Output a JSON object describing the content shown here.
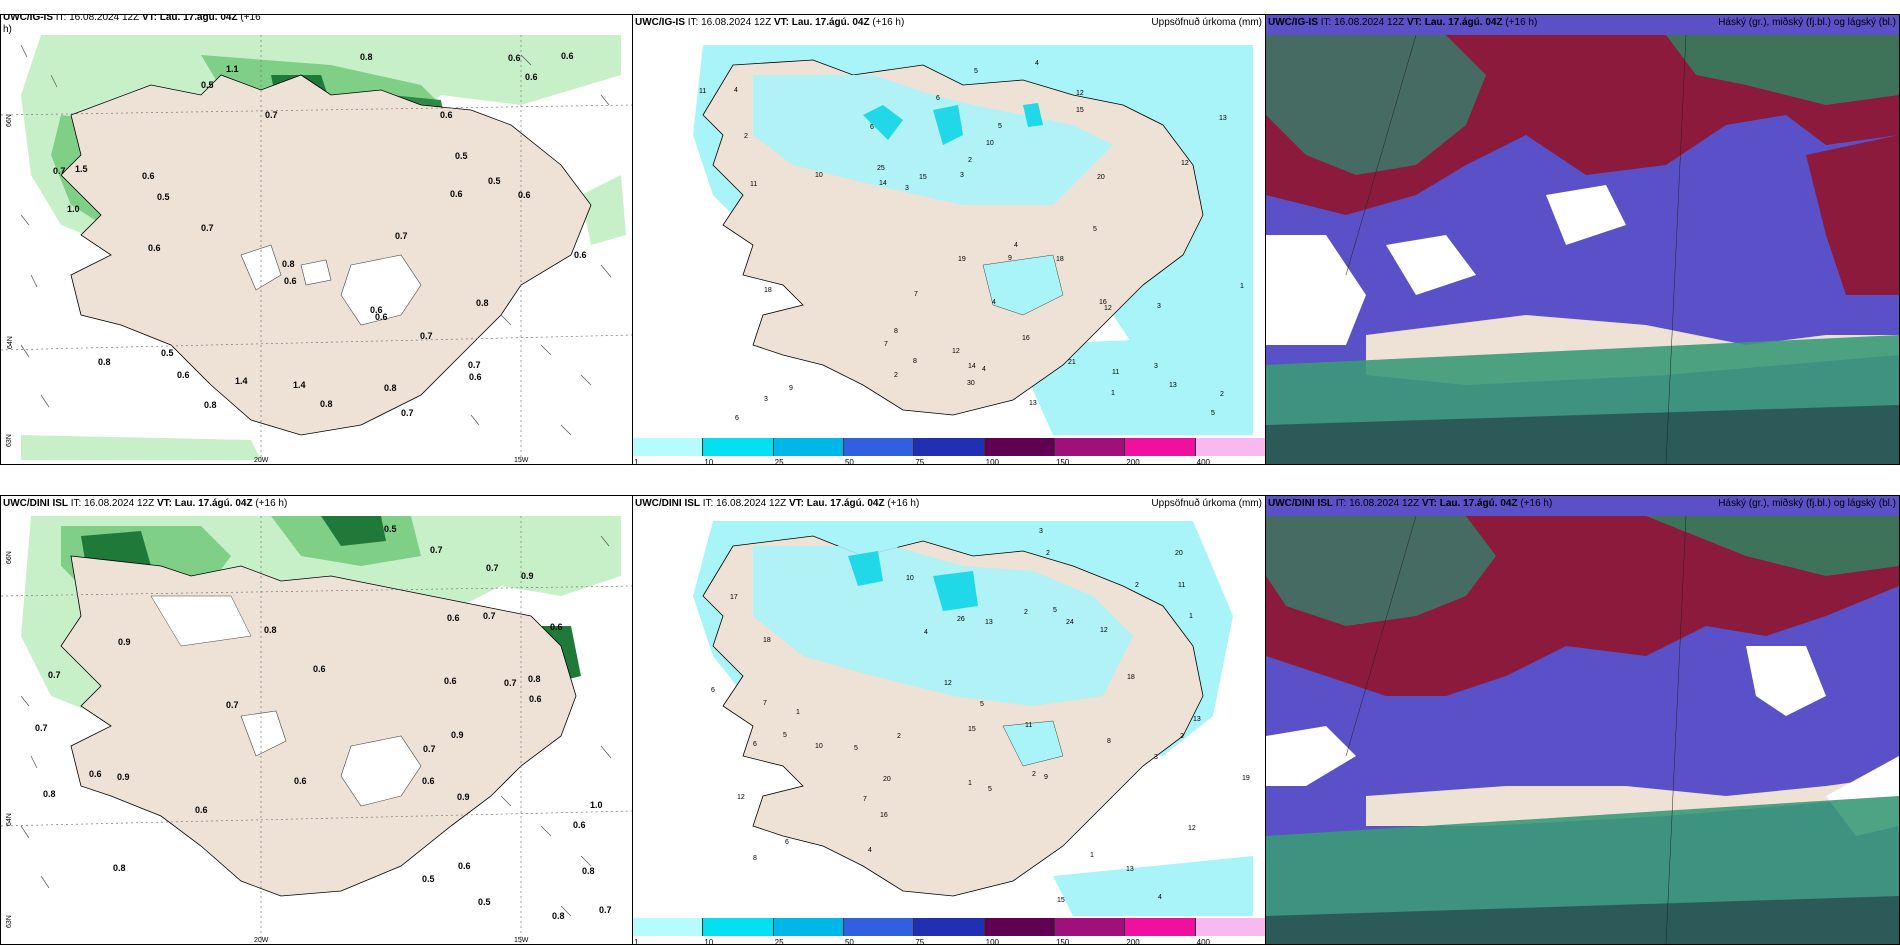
{
  "colors": {
    "land": "#eee2d6",
    "cloud_light_green": "#c8f0c8",
    "cloud_mid_green": "#7fcf86",
    "cloud_dark_green": "#1f7a3a",
    "precip_cyan": "#a8f4f8",
    "high_cloud": "#8b1a3c",
    "mid_cloud": "#5a50c8",
    "low_cloud": "#3a9a78"
  },
  "panels": {
    "top_left": {
      "title_model": "UWC/IG-IS",
      "title_it": "IT: 16.08.2024 12Z",
      "title_vt": "VT: Lau. 17.ágú. 04Z",
      "title_lead": "(+16",
      "title_wrap": "h)",
      "lat_66": "66N",
      "lat_64": "64N",
      "lat_63": "63N",
      "lon_20": "20W",
      "lon_15": "15W",
      "labels": [
        "0.7",
        "0.5",
        "0.5",
        "0.6",
        "0.5",
        "0.8",
        "0.6",
        "0.7",
        "0.6",
        "0.6",
        "0.8",
        "0.7",
        "0.8",
        "0.6",
        "0.6",
        "0.6",
        "1.0",
        "0.6",
        "0.8",
        "0.6",
        "0.7",
        "0.6",
        "0.8",
        "0.6",
        "0.7",
        "0.5",
        "0.6",
        "0.5",
        "0.8",
        "0.7",
        "0.7",
        "0.6",
        "0.6",
        "1.4",
        "1.1",
        "1.4",
        "0.8",
        "1.5"
      ]
    },
    "top_mid": {
      "title_model": "UWC/IG-IS",
      "title_it": "IT: 16.08.2024 12Z",
      "title_vt": "VT: Lau. 17.ágú. 04Z",
      "title_lead": "(+16 h)",
      "right_label": "Uppsöfnuð úrkoma (mm)",
      "numbers": [
        "3",
        "3",
        "4",
        "4",
        "6",
        "4",
        "3",
        "12",
        "11",
        "7",
        "5",
        "14",
        "8",
        "5",
        "21",
        "25",
        "16",
        "18",
        "19",
        "13",
        "11",
        "9",
        "30",
        "18",
        "12",
        "15",
        "15",
        "10",
        "12",
        "16",
        "13",
        "7",
        "5",
        "6",
        "9",
        "13",
        "14",
        "20",
        "11",
        "12",
        "10",
        "8",
        "6",
        "2",
        "5",
        "3",
        "2",
        "4",
        "1",
        "2",
        "2",
        "3",
        "4",
        "1"
      ],
      "colorbar": [
        "1",
        "10",
        "25",
        "50",
        "75",
        "100",
        "150",
        "200",
        "400"
      ]
    },
    "top_right": {
      "title_model": "UWC/IG-IS",
      "title_it": "IT: 16.08.2024 12Z",
      "title_vt": "VT: Lau. 17.ágú. 04Z",
      "title_lead": "(+16 h)",
      "right_label": "Háský (gr.), miðský (fj.bl.) og lágský (bl.)"
    },
    "bottom_left": {
      "title_model": "UWC/DINI ISL",
      "title_it": "IT: 16.08.2024 12Z",
      "title_vt": "VT: Lau. 17.ágú. 04Z",
      "title_lead": "(+16 h)",
      "lat_66": "66N",
      "lat_64": "64N",
      "lat_63": "63N",
      "lon_20": "20W",
      "lon_15": "15W",
      "labels": [
        "0.6",
        "1.0",
        "0.7",
        "0.6",
        "0.5",
        "0.7",
        "0.8",
        "0.6",
        "0.8",
        "0.5",
        "0.9",
        "0.7",
        "0.8",
        "0.9",
        "0.6",
        "0.8",
        "0.9",
        "0.6",
        "0.7",
        "0.8",
        "0.6",
        "0.7",
        "0.6",
        "0.7",
        "0.6",
        "0.8",
        "0.9",
        "0.6",
        "0.7",
        "0.9",
        "0.6",
        "0.5",
        "0.7",
        "0.6",
        "0.7"
      ]
    },
    "bottom_mid": {
      "title_model": "UWC/DINI ISL",
      "title_it": "IT: 16.08.2024 12Z",
      "title_vt": "VT: Lau. 17.ágú. 04Z",
      "title_lead": "(+16 h)",
      "right_label": "Uppsöfnuð úrkoma (mm)",
      "numbers": [
        "4",
        "5",
        "2",
        "17",
        "12",
        "18",
        "6",
        "5",
        "12",
        "26",
        "24",
        "13",
        "16",
        "10",
        "11",
        "12",
        "8",
        "5",
        "6",
        "8",
        "20",
        "13",
        "18",
        "19",
        "13",
        "7",
        "10",
        "15",
        "12",
        "11",
        "9",
        "6",
        "7",
        "5",
        "4",
        "3",
        "2",
        "1",
        "2",
        "15",
        "20",
        "5",
        "4",
        "3",
        "2",
        "1",
        "1",
        "2",
        "2",
        "1"
      ],
      "colorbar": [
        "1",
        "10",
        "25",
        "50",
        "75",
        "100",
        "150",
        "200",
        "400"
      ]
    },
    "bottom_right": {
      "title_model": "UWC/DINI ISL",
      "title_it": "IT: 16.08.2024 12Z",
      "title_vt": "VT: Lau. 17.ágú. 04Z",
      "title_lead": "(+16 h)",
      "right_label": "Háský (gr.), miðský (fj.bl.) og lágský (bl.)"
    }
  },
  "colorbar_colors": [
    "#b5fbff",
    "#00e0f0",
    "#00b8e8",
    "#3060e0",
    "#2030b0",
    "#600050",
    "#a0107a",
    "#f010a0",
    "#f8b8f0"
  ]
}
